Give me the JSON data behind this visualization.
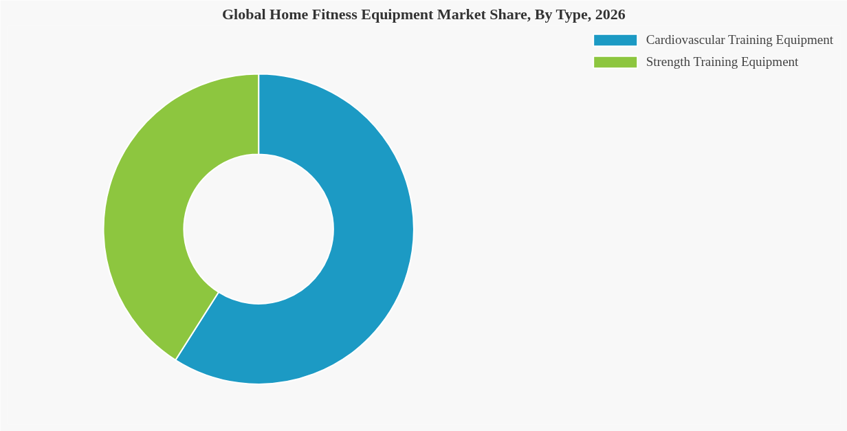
{
  "chart_data": {
    "type": "donut",
    "title": "Global Home Fitness Equipment Market Share, By Type, 2026",
    "categories": [
      "Cardiovascular Training Equipment",
      "Strength Training Equipment"
    ],
    "values": [
      59,
      41
    ],
    "colors": [
      "#1c9ac4",
      "#8dc63f"
    ],
    "legend": "top right"
  }
}
